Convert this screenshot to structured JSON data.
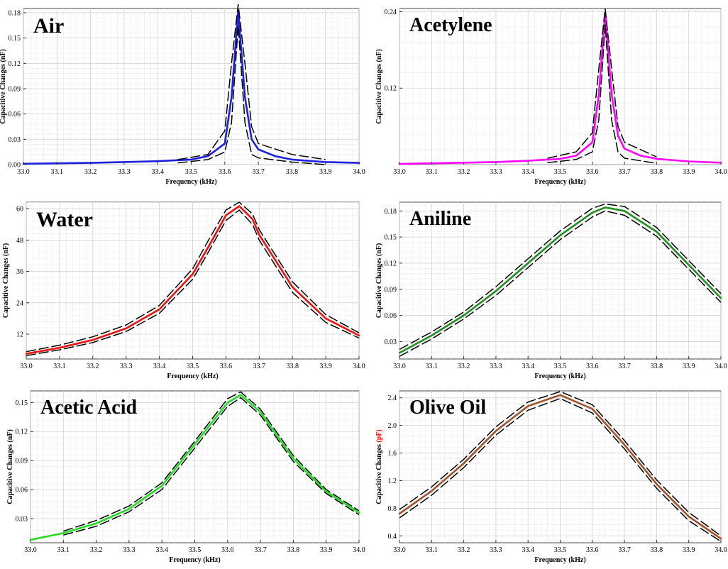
{
  "chart_data": [
    {
      "type": "line",
      "title": "Air",
      "xlabel": "Frequency (kHz)",
      "ylabel": "Capacitive Changes (nF)",
      "xlim": [
        33.0,
        34.0
      ],
      "ylim": [
        0.0,
        0.185
      ],
      "x_ticks": [
        "33.0",
        "33.1",
        "33.2",
        "33.3",
        "33.4",
        "33.5",
        "33.6",
        "33.7",
        "33.8",
        "33.9",
        "34.0"
      ],
      "y_ticks": [
        "0.00",
        "0.03",
        "0.06",
        "0.09",
        "0.12",
        "0.15",
        "0.18"
      ],
      "grid": true,
      "series": [
        {
          "color": "#1f1fe0",
          "x": [
            33.0,
            33.1,
            33.2,
            33.3,
            33.4,
            33.5,
            33.55,
            33.6,
            33.62,
            33.64,
            33.66,
            33.68,
            33.7,
            33.75,
            33.8,
            33.9,
            34.0
          ],
          "y": [
            0.001,
            0.0015,
            0.002,
            0.003,
            0.004,
            0.006,
            0.01,
            0.025,
            0.08,
            0.182,
            0.08,
            0.03,
            0.018,
            0.01,
            0.006,
            0.003,
            0.002
          ]
        }
      ],
      "band": {
        "color": "#000000",
        "x": [
          33.46,
          33.55,
          33.6,
          33.62,
          33.64,
          33.66,
          33.68,
          33.7,
          33.8,
          33.9
        ],
        "upper": [
          0.006,
          0.012,
          0.04,
          0.12,
          0.19,
          0.12,
          0.045,
          0.025,
          0.012,
          0.006
        ],
        "lower": [
          0.002,
          0.006,
          0.015,
          0.05,
          0.165,
          0.05,
          0.012,
          0.008,
          0.003,
          0.0
        ]
      }
    },
    {
      "type": "line",
      "title": "Acetylene",
      "xlabel": "Frequency (kHz)",
      "ylabel": "Capacitive Changes (nF)",
      "xlim": [
        33.0,
        34.0
      ],
      "ylim": [
        0.0,
        0.245
      ],
      "x_ticks": [
        "33.0",
        "33.1",
        "33.2",
        "33.3",
        "33.4",
        "33.5",
        "33.6",
        "33.7",
        "33.8",
        "33.9",
        "34.0"
      ],
      "y_ticks": [
        "0.12",
        "0.24"
      ],
      "y_tick_values": [
        0.12,
        0.24
      ],
      "grid": true,
      "series": [
        {
          "color": "#ff00ff",
          "x": [
            33.0,
            33.1,
            33.2,
            33.3,
            33.4,
            33.5,
            33.55,
            33.6,
            33.62,
            33.64,
            33.66,
            33.68,
            33.7,
            33.75,
            33.8,
            33.9,
            34.0
          ],
          "y": [
            0.001,
            0.002,
            0.003,
            0.004,
            0.006,
            0.009,
            0.014,
            0.035,
            0.11,
            0.238,
            0.11,
            0.045,
            0.025,
            0.014,
            0.009,
            0.005,
            0.003
          ]
        }
      ],
      "band": {
        "color": "#000000",
        "x": [
          33.46,
          33.55,
          33.6,
          33.62,
          33.64,
          33.66,
          33.68,
          33.7,
          33.8
        ],
        "upper": [
          0.01,
          0.02,
          0.05,
          0.15,
          0.245,
          0.15,
          0.06,
          0.035,
          0.012
        ],
        "lower": [
          0.003,
          0.008,
          0.02,
          0.07,
          0.22,
          0.07,
          0.02,
          0.01,
          0.002
        ]
      }
    },
    {
      "type": "line",
      "title": "Water",
      "xlabel": "Frequency (kHz)",
      "ylabel": "Capacitive Changes (nF)",
      "xlim": [
        33.0,
        34.0
      ],
      "ylim": [
        2.5,
        62.5
      ],
      "x_ticks": [
        "33.0",
        "33.1",
        "33.2",
        "33.3",
        "33.4",
        "33.5",
        "33.6",
        "33.7",
        "33.8",
        "33.9",
        "34.0"
      ],
      "y_ticks": [
        "12",
        "24",
        "36",
        "48",
        "60"
      ],
      "y_tick_values": [
        12,
        24,
        36,
        48,
        60
      ],
      "grid": true,
      "series": [
        {
          "color": "#ee1111",
          "x": [
            33.0,
            33.1,
            33.2,
            33.3,
            33.4,
            33.5,
            33.55,
            33.6,
            33.64,
            33.68,
            33.7,
            33.8,
            33.9,
            34.0
          ],
          "y": [
            4.5,
            6.8,
            9.8,
            14.2,
            21.5,
            35,
            46,
            57.5,
            61,
            56,
            50,
            30,
            18,
            11.5
          ]
        }
      ],
      "band": {
        "color": "#000000",
        "x": [
          33.0,
          33.1,
          33.2,
          33.3,
          33.4,
          33.5,
          33.55,
          33.6,
          33.64,
          33.68,
          33.7,
          33.8,
          33.9,
          34.0
        ],
        "upper": [
          5.3,
          7.8,
          11,
          15.5,
          23,
          37,
          48.5,
          59.5,
          62.5,
          58,
          52,
          32,
          19.5,
          12.5
        ],
        "lower": [
          3.8,
          6.0,
          8.8,
          13,
          20,
          33,
          44,
          55.5,
          59.5,
          54,
          48,
          28,
          16.5,
          10.5
        ]
      }
    },
    {
      "type": "line",
      "title": "Aniline",
      "xlabel": "Frequency (kHz)",
      "ylabel": "Capacitive Changes (nF)",
      "xlim": [
        33.0,
        34.0
      ],
      "ylim": [
        0.01,
        0.19
      ],
      "x_ticks": [
        "33.0",
        "33.1",
        "33.2",
        "33.3",
        "33.4",
        "33.5",
        "33.6",
        "33.7",
        "33.8",
        "33.9",
        "34.0"
      ],
      "y_ticks": [
        "0.03",
        "0.06",
        "0.09",
        "0.12",
        "0.15",
        "0.18"
      ],
      "y_tick_values": [
        0.03,
        0.06,
        0.09,
        0.12,
        0.15,
        0.18
      ],
      "grid": true,
      "series": [
        {
          "color": "#1e8f1e",
          "x": [
            33.0,
            33.1,
            33.2,
            33.3,
            33.4,
            33.5,
            33.6,
            33.64,
            33.7,
            33.8,
            33.9,
            34.0
          ],
          "y": [
            0.017,
            0.037,
            0.06,
            0.088,
            0.12,
            0.152,
            0.178,
            0.184,
            0.18,
            0.156,
            0.118,
            0.08
          ]
        }
      ],
      "band": {
        "color": "#000000",
        "x": [
          33.0,
          33.1,
          33.2,
          33.3,
          33.4,
          33.5,
          33.6,
          33.64,
          33.7,
          33.8,
          33.9,
          34.0
        ],
        "upper": [
          0.021,
          0.041,
          0.064,
          0.093,
          0.125,
          0.157,
          0.183,
          0.188,
          0.185,
          0.161,
          0.123,
          0.085
        ],
        "lower": [
          0.013,
          0.033,
          0.056,
          0.083,
          0.115,
          0.147,
          0.173,
          0.18,
          0.175,
          0.151,
          0.113,
          0.075
        ]
      }
    },
    {
      "type": "line",
      "title": "Acetic Acid",
      "xlabel": "Frequency (kHz)",
      "ylabel": "Capacitive Changes (nF)",
      "xlim": [
        33.0,
        34.0
      ],
      "ylim": [
        0.005,
        0.162
      ],
      "x_ticks": [
        "33.0",
        "33.1",
        "33.2",
        "33.3",
        "33.4",
        "33.5",
        "33.6",
        "33.7",
        "33.8",
        "33.9",
        "34.0"
      ],
      "y_ticks": [
        "0.03",
        "0.06",
        "0.09",
        "0.12",
        "0.15"
      ],
      "y_tick_values": [
        0.03,
        0.06,
        0.09,
        0.12,
        0.15
      ],
      "grid": true,
      "series": [
        {
          "color": "#22dd22",
          "x": [
            33.0,
            33.1,
            33.2,
            33.3,
            33.4,
            33.5,
            33.6,
            33.64,
            33.7,
            33.8,
            33.9,
            34.0
          ],
          "y": [
            0.008,
            0.015,
            0.025,
            0.04,
            0.064,
            0.107,
            0.15,
            0.158,
            0.14,
            0.092,
            0.058,
            0.036
          ]
        }
      ],
      "band": {
        "color": "#000000",
        "x": [
          33.1,
          33.2,
          33.3,
          33.4,
          33.5,
          33.6,
          33.64,
          33.7,
          33.8,
          33.9,
          34.0
        ],
        "upper": [
          0.017,
          0.028,
          0.043,
          0.067,
          0.11,
          0.154,
          0.161,
          0.143,
          0.095,
          0.06,
          0.038
        ],
        "lower": [
          0.013,
          0.022,
          0.037,
          0.06,
          0.103,
          0.146,
          0.155,
          0.137,
          0.089,
          0.056,
          0.034
        ]
      }
    },
    {
      "type": "line",
      "title": "Olive Oil",
      "xlabel": "Frequency (kHz)",
      "ylabel": "Capacitive Changes (pF)",
      "ylabel_parts": [
        "Capacitive Changes ",
        "(pF)"
      ],
      "ylabel_unit_color": "#ff0000",
      "xlim": [
        33.0,
        34.0
      ],
      "ylim": [
        0.3,
        2.5
      ],
      "x_ticks": [
        "33.0",
        "33.1",
        "33.2",
        "33.3",
        "33.4",
        "33.5",
        "33.6",
        "33.7",
        "33.8",
        "33.9",
        "34.0"
      ],
      "y_ticks": [
        "0.4",
        "0.8",
        "1.2",
        "1.6",
        "2.0",
        "2.4"
      ],
      "y_tick_values": [
        0.4,
        0.8,
        1.2,
        1.6,
        2.0,
        2.4
      ],
      "grid": true,
      "series": [
        {
          "color": "#a0522d",
          "x": [
            33.0,
            33.1,
            33.2,
            33.3,
            33.4,
            33.5,
            33.6,
            33.7,
            33.8,
            33.9,
            34.0
          ],
          "y": [
            0.72,
            1.05,
            1.45,
            1.92,
            2.28,
            2.44,
            2.24,
            1.72,
            1.15,
            0.68,
            0.36
          ]
        }
      ],
      "band": {
        "color": "#000000",
        "x": [
          33.0,
          33.1,
          33.2,
          33.3,
          33.4,
          33.5,
          33.6,
          33.7,
          33.8,
          33.9,
          34.0
        ],
        "upper": [
          0.78,
          1.11,
          1.51,
          1.98,
          2.34,
          2.49,
          2.3,
          1.78,
          1.21,
          0.74,
          0.4
        ],
        "lower": [
          0.66,
          0.99,
          1.39,
          1.86,
          2.22,
          2.39,
          2.18,
          1.66,
          1.09,
          0.62,
          0.32
        ]
      }
    }
  ]
}
